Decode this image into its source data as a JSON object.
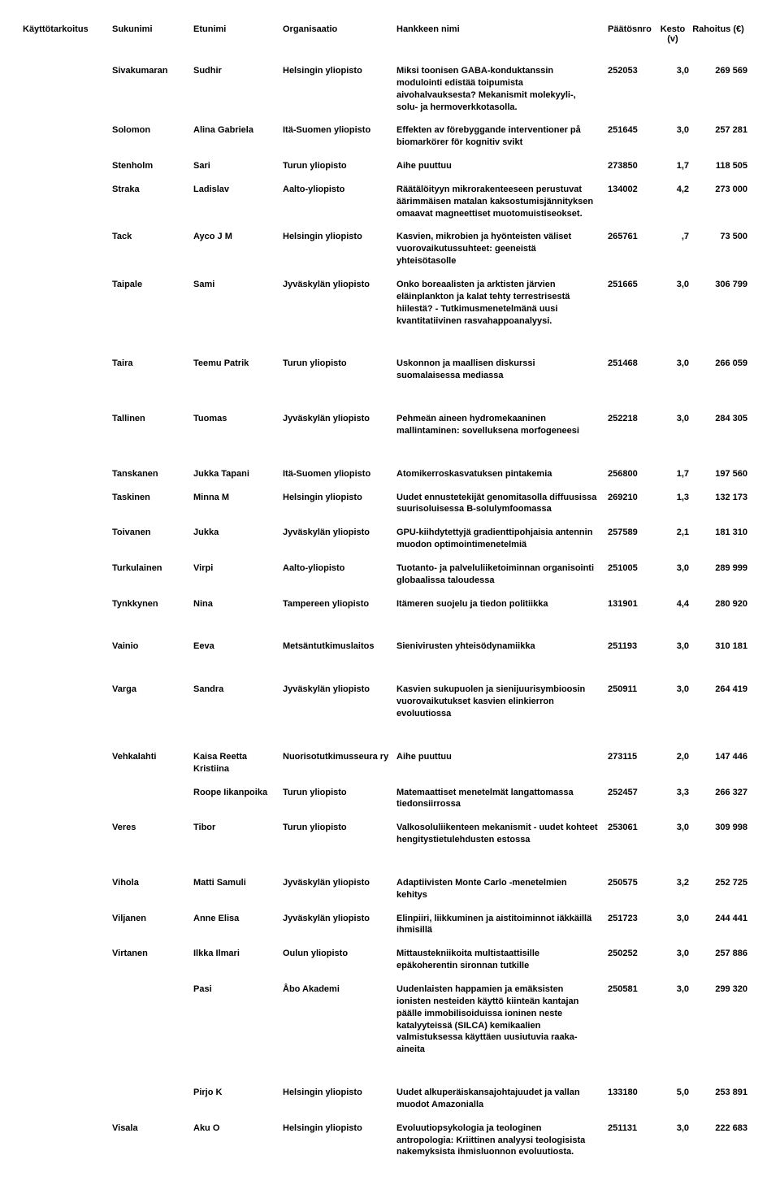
{
  "headers": {
    "purpose": "Käyttötarkoitus",
    "surname": "Sukunimi",
    "firstname": "Etunimi",
    "org": "Organisaatio",
    "project": "Hankkeen nimi",
    "number": "Päätösnro",
    "duration": "Kesto (v)",
    "funding": "Rahoitus (€)"
  },
  "rows": [
    {
      "purpose": "",
      "surname": "Sivakumaran",
      "first": "Sudhir",
      "org": "Helsingin yliopisto",
      "project": "Miksi toonisen GABA-konduktanssin modulointi edistää toipumista aivohalvauksesta? Mekanismit molekyyli-, solu- ja hermoverkkotasolla.",
      "num": "252053",
      "dur": "3,0",
      "fund": "269 569",
      "space": ""
    },
    {
      "purpose": "",
      "surname": "Solomon",
      "first": "Alina Gabriela",
      "org": "Itä-Suomen yliopisto",
      "project": "Effekten av förebyggande interventioner på biomarkörer för kognitiv svikt",
      "num": "251645",
      "dur": "3,0",
      "fund": "257 281",
      "space": ""
    },
    {
      "purpose": "",
      "surname": "Stenholm",
      "first": "Sari",
      "org": "Turun yliopisto",
      "project": "Aihe puuttuu",
      "num": "273850",
      "dur": "1,7",
      "fund": "118 505",
      "space": ""
    },
    {
      "purpose": "",
      "surname": "Straka",
      "first": "Ladislav",
      "org": "Aalto-yliopisto",
      "project": "Räätälöityyn mikrorakenteeseen perustuvat äärimmäisen matalan kaksostumisjännityksen omaavat magneettiset muotomuistiseokset.",
      "num": "134002",
      "dur": "4,2",
      "fund": "273 000",
      "space": ""
    },
    {
      "purpose": "",
      "surname": "Tack",
      "first": "Ayco J M",
      "org": "Helsingin yliopisto",
      "project": "Kasvien, mikrobien ja hyönteisten väliset vuorovaikutussuhteet: geeneistä yhteisötasolle",
      "num": "265761",
      "dur": ",7",
      "fund": "73 500",
      "space": ""
    },
    {
      "purpose": "",
      "surname": "Taipale",
      "first": "Sami",
      "org": "Jyväskylän yliopisto",
      "project": "Onko boreaalisten ja arktisten järvien eläinplankton ja kalat tehty terrestrisestä hiilestä? - Tutkimusmenetelmänä uusi kvantitatiivinen rasvahappoanalyysi.",
      "num": "251665",
      "dur": "3,0",
      "fund": "306 799",
      "space": "lg"
    },
    {
      "purpose": "",
      "surname": "Taira",
      "first": "Teemu Patrik",
      "org": "Turun yliopisto",
      "project": "Uskonnon ja maallisen diskurssi suomalaisessa mediassa",
      "num": "251468",
      "dur": "3,0",
      "fund": "266 059",
      "space": "lg"
    },
    {
      "purpose": "",
      "surname": "Tallinen",
      "first": "Tuomas",
      "org": "Jyväskylän yliopisto",
      "project": "Pehmeän aineen hydromekaaninen mallintaminen: sovelluksena morfogeneesi",
      "num": "252218",
      "dur": "3,0",
      "fund": "284 305",
      "space": "lg"
    },
    {
      "purpose": "",
      "surname": "Tanskanen",
      "first": "Jukka Tapani",
      "org": "Itä-Suomen yliopisto",
      "project": "Atomikerroskasvatuksen pintakemia",
      "num": "256800",
      "dur": "1,7",
      "fund": "197 560",
      "space": ""
    },
    {
      "purpose": "",
      "surname": "Taskinen",
      "first": "Minna M",
      "org": "Helsingin yliopisto",
      "project": "Uudet ennustetekijät genomitasolla diffuusissa suurisoluisessa B-solulymfoomassa",
      "num": "269210",
      "dur": "1,3",
      "fund": "132 173",
      "space": ""
    },
    {
      "purpose": "",
      "surname": "Toivanen",
      "first": "Jukka",
      "org": "Jyväskylän yliopisto",
      "project": "GPU-kiihdytettyjä gradienttipohjaisia antennin muodon optimointimenetelmiä",
      "num": "257589",
      "dur": "2,1",
      "fund": "181 310",
      "space": ""
    },
    {
      "purpose": "",
      "surname": "Turkulainen",
      "first": "Virpi",
      "org": "Aalto-yliopisto",
      "project": "Tuotanto- ja palveluliiketoiminnan organisointi globaalissa taloudessa",
      "num": "251005",
      "dur": "3,0",
      "fund": "289 999",
      "space": ""
    },
    {
      "purpose": "",
      "surname": "Tynkkynen",
      "first": "Nina",
      "org": "Tampereen yliopisto",
      "project": "Itämeren suojelu ja tiedon politiikka",
      "num": "131901",
      "dur": "4,4",
      "fund": "280 920",
      "space": "lg"
    },
    {
      "purpose": "",
      "surname": "Vainio",
      "first": "Eeva",
      "org": "Metsäntutkimuslaitos",
      "project": "Sienivirusten yhteisödynamiikka",
      "num": "251193",
      "dur": "3,0",
      "fund": "310 181",
      "space": "lg"
    },
    {
      "purpose": "",
      "surname": "Varga",
      "first": "Sandra",
      "org": "Jyväskylän yliopisto",
      "project": "Kasvien sukupuolen ja sienijuurisymbioosin vuorovaikutukset kasvien elinkierron evoluutiossa",
      "num": "250911",
      "dur": "3,0",
      "fund": "264 419",
      "space": "lg"
    },
    {
      "purpose": "",
      "surname": "Vehkalahti",
      "first": "Kaisa Reetta Kristiina",
      "org": "Nuorisotutkimusseura ry",
      "project": "Aihe puuttuu",
      "num": "273115",
      "dur": "2,0",
      "fund": "147 446",
      "space": ""
    },
    {
      "purpose": "",
      "surname": "",
      "first": "Roope Iikanpoika",
      "org": "Turun yliopisto",
      "project": "Matemaattiset menetelmät langattomassa tiedonsiirrossa",
      "num": "252457",
      "dur": "3,3",
      "fund": "266 327",
      "space": ""
    },
    {
      "purpose": "",
      "surname": "Veres",
      "first": "Tibor",
      "org": "Turun yliopisto",
      "project": "Valkosoluliikenteen mekanismit - uudet kohteet hengitystietulehdusten estossa",
      "num": "253061",
      "dur": "3,0",
      "fund": "309 998",
      "space": "lg"
    },
    {
      "purpose": "",
      "surname": "Vihola",
      "first": "Matti Samuli",
      "org": "Jyväskylän yliopisto",
      "project": "Adaptiivisten Monte Carlo -menetelmien kehitys",
      "num": "250575",
      "dur": "3,2",
      "fund": "252 725",
      "space": ""
    },
    {
      "purpose": "",
      "surname": "Viljanen",
      "first": "Anne Elisa",
      "org": "Jyväskylän yliopisto",
      "project": "Elinpiiri, liikkuminen ja aistitoiminnot iäkkäillä ihmisillä",
      "num": "251723",
      "dur": "3,0",
      "fund": "244 441",
      "space": ""
    },
    {
      "purpose": "",
      "surname": "Virtanen",
      "first": "Ilkka Ilmari",
      "org": "Oulun yliopisto",
      "project": "Mittaustekniikoita multistaattisille epäkoherentin sironnan tutkille",
      "num": "250252",
      "dur": "3,0",
      "fund": "257 886",
      "space": ""
    },
    {
      "purpose": "",
      "surname": "",
      "first": "Pasi",
      "org": "Åbo Akademi",
      "project": "Uudenlaisten happamien ja emäksisten ionisten nesteiden käyttö kiinteän kantajan päälle immobilisoiduissa ioninen neste katalyyteissä (SILCA) kemikaalien valmistuksessa käyttäen uusiutuvia raaka-aineita",
      "num": "250581",
      "dur": "3,0",
      "fund": "299 320",
      "space": "lg"
    },
    {
      "purpose": "",
      "surname": "",
      "first": "Pirjo K",
      "org": "Helsingin yliopisto",
      "project": "Uudet alkuperäiskansajohtajuudet ja vallan muodot Amazonialla",
      "num": "133180",
      "dur": "5,0",
      "fund": "253 891",
      "space": ""
    },
    {
      "purpose": "",
      "surname": "Visala",
      "first": "Aku O",
      "org": "Helsingin yliopisto",
      "project": "Evoluutiopsykologia ja teologinen antropologia: Kriittinen analyysi teologisista nakemyksista ihmisluonnon evoluutiosta.",
      "num": "251131",
      "dur": "3,0",
      "fund": "222 683",
      "space": ""
    }
  ]
}
